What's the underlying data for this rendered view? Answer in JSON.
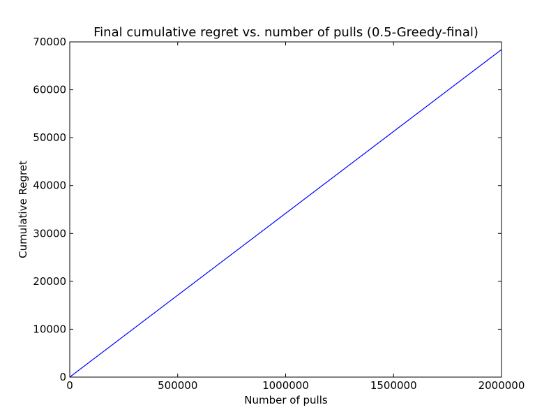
{
  "chart_data": {
    "type": "line",
    "title": "Final cumulative regret vs. number of pulls (0.5-Greedy-final)",
    "xlabel": "Number of pulls",
    "ylabel": "Cumulative Regret",
    "xlim": [
      0,
      2000000
    ],
    "ylim": [
      0,
      70000
    ],
    "xticks": [
      0,
      500000,
      1000000,
      1500000,
      2000000
    ],
    "yticks": [
      0,
      10000,
      20000,
      30000,
      40000,
      50000,
      60000,
      70000
    ],
    "xtick_labels": [
      "0",
      "500000",
      "1000000",
      "1500000",
      "2000000"
    ],
    "ytick_labels": [
      "0",
      "10000",
      "20000",
      "30000",
      "40000",
      "50000",
      "60000",
      "70000"
    ],
    "grid": false,
    "series": [
      {
        "color": "#0000ff",
        "x": [
          0,
          500000,
          1000000,
          1500000,
          2000000
        ],
        "y": [
          0,
          17100,
          34200,
          51300,
          68400
        ]
      }
    ]
  }
}
